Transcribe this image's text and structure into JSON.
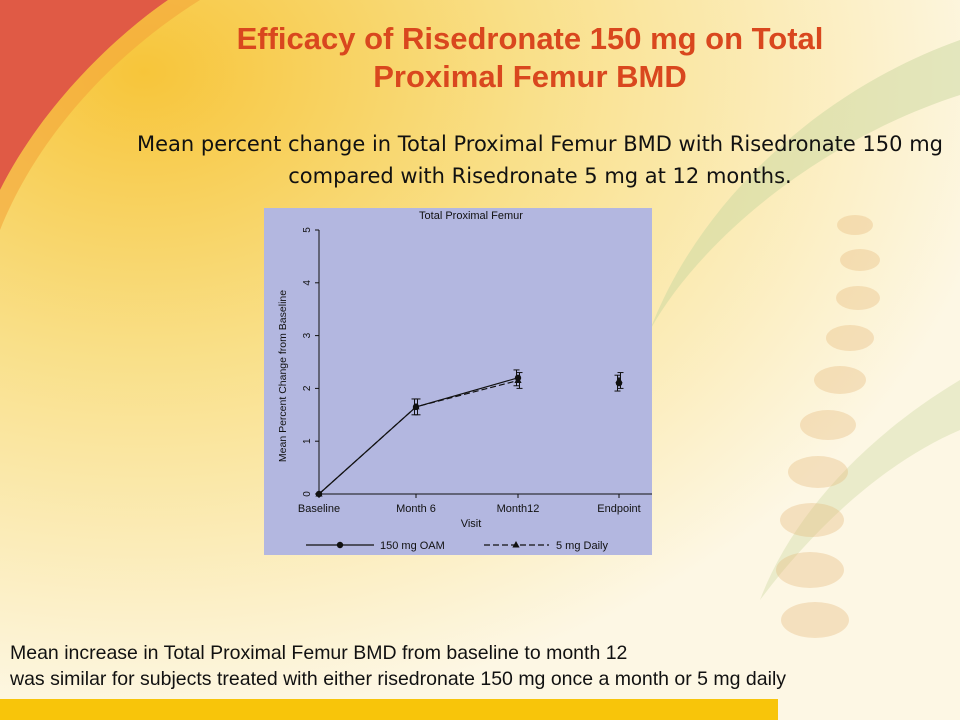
{
  "slide": {
    "title_line1": "Efficacy of Risedronate 150 mg on Total",
    "title_line2": "Proximal Femur BMD",
    "subtitle_line1": "Mean percent change in Total Proximal Femur BMD with Risedronate 150 mg",
    "subtitle_line2": "compared with Risedronate 5 mg at 12 months.",
    "footer_line1": "Mean increase in Total Proximal Femur BMD from baseline to month 12",
    "footer_line2": "was similar for subjects treated with either risedronate 150 mg once a month or 5 mg daily"
  },
  "colors": {
    "title": "#d9471e",
    "chart_background": "#b3b7e0",
    "bottom_bar": "#f8c50a"
  },
  "chart_data": {
    "type": "line",
    "title": "Total Proximal Femur",
    "xlabel": "Visit",
    "ylabel": "Mean Percent Change from Baseline",
    "categories": [
      "Baseline",
      "Month 6",
      "Month12",
      "Endpoint"
    ],
    "ylim": [
      0,
      5
    ],
    "yticks": [
      0,
      1,
      2,
      3,
      4,
      5
    ],
    "grid": false,
    "legend_position": "bottom",
    "series": [
      {
        "name": "150 mg OAM",
        "marker": "circle",
        "line_style": "solid",
        "values": [
          0,
          1.65,
          2.2,
          2.1
        ],
        "error": [
          0,
          0.15,
          0.15,
          0.15
        ],
        "connected_points": 3
      },
      {
        "name": "5 mg Daily",
        "marker": "triangle",
        "line_style": "dashed",
        "values": [
          0,
          1.65,
          2.15,
          2.15
        ],
        "error": [
          0,
          0.15,
          0.15,
          0.15
        ],
        "connected_points": 3
      }
    ]
  }
}
